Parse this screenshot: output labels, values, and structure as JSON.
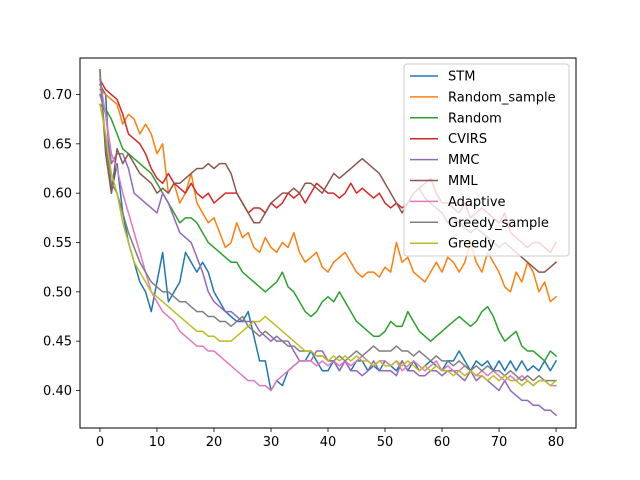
{
  "chart_data": {
    "type": "line",
    "title": "",
    "xlabel": "",
    "ylabel": "",
    "xlim": [
      -3.5,
      83.5
    ],
    "ylim": [
      0.362,
      0.737
    ],
    "x_ticks": [
      0,
      10,
      20,
      30,
      40,
      50,
      60,
      70,
      80
    ],
    "y_ticks": [
      0.4,
      0.45,
      0.5,
      0.55,
      0.6,
      0.65,
      0.7
    ],
    "y_tick_labels": [
      "0.40",
      "0.45",
      "0.50",
      "0.55",
      "0.60",
      "0.65",
      "0.70"
    ],
    "legend_position": "top-right",
    "grid": false,
    "x_start": 0,
    "x_step": 1,
    "series": [
      {
        "name": "STM",
        "color": "#1f77b4",
        "values": [
          0.71,
          0.7,
          0.6,
          0.63,
          0.58,
          0.55,
          0.53,
          0.51,
          0.5,
          0.48,
          0.51,
          0.54,
          0.49,
          0.5,
          0.51,
          0.54,
          0.53,
          0.52,
          0.53,
          0.52,
          0.5,
          0.49,
          0.48,
          0.475,
          0.47,
          0.47,
          0.48,
          0.455,
          0.43,
          0.43,
          0.4,
          0.41,
          0.405,
          0.42,
          0.425,
          0.43,
          0.43,
          0.44,
          0.43,
          0.42,
          0.42,
          0.43,
          0.42,
          0.43,
          0.42,
          0.43,
          0.43,
          0.42,
          0.425,
          0.42,
          0.43,
          0.425,
          0.42,
          0.43,
          0.42,
          0.43,
          0.42,
          0.425,
          0.43,
          0.425,
          0.42,
          0.43,
          0.43,
          0.44,
          0.43,
          0.42,
          0.43,
          0.425,
          0.43,
          0.42,
          0.43,
          0.42,
          0.43,
          0.42,
          0.43,
          0.42,
          0.425,
          0.42,
          0.43,
          0.42,
          0.43
        ]
      },
      {
        "name": "Random_sample",
        "color": "#ff7f0e",
        "values": [
          0.705,
          0.7,
          0.695,
          0.69,
          0.67,
          0.68,
          0.675,
          0.66,
          0.67,
          0.66,
          0.64,
          0.65,
          0.6,
          0.61,
          0.59,
          0.6,
          0.62,
          0.59,
          0.58,
          0.57,
          0.575,
          0.56,
          0.545,
          0.55,
          0.57,
          0.555,
          0.56,
          0.545,
          0.54,
          0.555,
          0.545,
          0.54,
          0.55,
          0.545,
          0.56,
          0.54,
          0.53,
          0.535,
          0.54,
          0.525,
          0.52,
          0.53,
          0.535,
          0.54,
          0.53,
          0.52,
          0.515,
          0.52,
          0.52,
          0.515,
          0.525,
          0.52,
          0.55,
          0.53,
          0.535,
          0.52,
          0.515,
          0.51,
          0.52,
          0.53,
          0.52,
          0.535,
          0.53,
          0.52,
          0.53,
          0.55,
          0.53,
          0.52,
          0.54,
          0.53,
          0.52,
          0.505,
          0.5,
          0.52,
          0.51,
          0.53,
          0.52,
          0.5,
          0.51,
          0.49,
          0.495
        ]
      },
      {
        "name": "Random",
        "color": "#2ca02c",
        "values": [
          0.69,
          0.685,
          0.675,
          0.66,
          0.645,
          0.64,
          0.635,
          0.63,
          0.625,
          0.62,
          0.61,
          0.6,
          0.59,
          0.58,
          0.57,
          0.575,
          0.575,
          0.57,
          0.56,
          0.55,
          0.545,
          0.54,
          0.535,
          0.53,
          0.53,
          0.52,
          0.515,
          0.51,
          0.505,
          0.5,
          0.505,
          0.51,
          0.52,
          0.505,
          0.5,
          0.49,
          0.48,
          0.475,
          0.48,
          0.49,
          0.495,
          0.49,
          0.5,
          0.49,
          0.48,
          0.47,
          0.465,
          0.46,
          0.455,
          0.455,
          0.46,
          0.47,
          0.465,
          0.465,
          0.48,
          0.47,
          0.46,
          0.455,
          0.45,
          0.455,
          0.46,
          0.465,
          0.47,
          0.475,
          0.47,
          0.465,
          0.47,
          0.48,
          0.485,
          0.475,
          0.46,
          0.45,
          0.455,
          0.46,
          0.445,
          0.44,
          0.44,
          0.435,
          0.43,
          0.44,
          0.435
        ]
      },
      {
        "name": "CVIRS",
        "color": "#d62728",
        "values": [
          0.715,
          0.705,
          0.7,
          0.695,
          0.68,
          0.66,
          0.655,
          0.65,
          0.64,
          0.625,
          0.615,
          0.61,
          0.62,
          0.61,
          0.605,
          0.6,
          0.61,
          0.6,
          0.595,
          0.6,
          0.59,
          0.595,
          0.6,
          0.6,
          0.6,
          0.59,
          0.58,
          0.585,
          0.585,
          0.58,
          0.59,
          0.585,
          0.59,
          0.6,
          0.595,
          0.6,
          0.59,
          0.6,
          0.61,
          0.605,
          0.6,
          0.6,
          0.595,
          0.6,
          0.61,
          0.6,
          0.605,
          0.6,
          0.595,
          0.6,
          0.59,
          0.585,
          0.59,
          0.585,
          0.59,
          0.6,
          0.605,
          0.61,
          0.615,
          0.6,
          0.59,
          0.59,
          0.585,
          0.58,
          0.59,
          0.575,
          0.58,
          0.585,
          0.58,
          0.575,
          0.57,
          0.58,
          0.56,
          0.555,
          0.55,
          0.545,
          0.55,
          0.55,
          0.545,
          0.54,
          0.55
        ]
      },
      {
        "name": "MMC",
        "color": "#9467bd",
        "values": [
          0.7,
          0.68,
          0.63,
          0.64,
          0.64,
          0.625,
          0.6,
          0.595,
          0.59,
          0.585,
          0.58,
          0.6,
          0.59,
          0.575,
          0.56,
          0.555,
          0.55,
          0.535,
          0.52,
          0.5,
          0.49,
          0.485,
          0.48,
          0.48,
          0.475,
          0.47,
          0.47,
          0.47,
          0.46,
          0.455,
          0.45,
          0.455,
          0.45,
          0.45,
          0.44,
          0.43,
          0.43,
          0.43,
          0.44,
          0.44,
          0.43,
          0.43,
          0.42,
          0.43,
          0.42,
          0.42,
          0.415,
          0.42,
          0.43,
          0.42,
          0.42,
          0.42,
          0.415,
          0.43,
          0.42,
          0.42,
          0.415,
          0.415,
          0.42,
          0.42,
          0.415,
          0.42,
          0.42,
          0.415,
          0.41,
          0.42,
          0.41,
          0.415,
          0.41,
          0.405,
          0.4,
          0.41,
          0.4,
          0.395,
          0.39,
          0.39,
          0.385,
          0.385,
          0.38,
          0.38,
          0.375
        ]
      },
      {
        "name": "MML",
        "color": "#8c564b",
        "values": [
          0.725,
          0.64,
          0.6,
          0.645,
          0.63,
          0.64,
          0.63,
          0.62,
          0.615,
          0.61,
          0.6,
          0.605,
          0.6,
          0.61,
          0.61,
          0.615,
          0.62,
          0.625,
          0.625,
          0.63,
          0.625,
          0.63,
          0.63,
          0.62,
          0.6,
          0.59,
          0.58,
          0.57,
          0.57,
          0.58,
          0.59,
          0.595,
          0.6,
          0.6,
          0.605,
          0.6,
          0.61,
          0.61,
          0.605,
          0.6,
          0.61,
          0.62,
          0.615,
          0.62,
          0.625,
          0.63,
          0.635,
          0.63,
          0.625,
          0.62,
          0.61,
          0.6,
          0.59,
          0.58,
          0.59,
          0.6,
          0.605,
          0.595,
          0.59,
          0.585,
          0.58,
          0.57,
          0.575,
          0.57,
          0.565,
          0.56,
          0.565,
          0.56,
          0.555,
          0.55,
          0.545,
          0.55,
          0.545,
          0.54,
          0.535,
          0.53,
          0.525,
          0.52,
          0.52,
          0.525,
          0.53
        ]
      },
      {
        "name": "Adaptive",
        "color": "#e377c2",
        "values": [
          0.715,
          0.68,
          0.64,
          0.625,
          0.6,
          0.58,
          0.56,
          0.54,
          0.52,
          0.5,
          0.49,
          0.48,
          0.475,
          0.47,
          0.46,
          0.455,
          0.45,
          0.445,
          0.445,
          0.44,
          0.44,
          0.435,
          0.43,
          0.425,
          0.42,
          0.415,
          0.41,
          0.41,
          0.405,
          0.405,
          0.4,
          0.41,
          0.415,
          0.42,
          0.425,
          0.43,
          0.43,
          0.43,
          0.425,
          0.43,
          0.425,
          0.43,
          0.425,
          0.43,
          0.425,
          0.43,
          0.435,
          0.43,
          0.425,
          0.43,
          0.43,
          0.425,
          0.43,
          0.42,
          0.425,
          0.43,
          0.425,
          0.42,
          0.425,
          0.43,
          0.42,
          0.425,
          0.42,
          0.42,
          0.425,
          0.42,
          0.415,
          0.42,
          0.415,
          0.42,
          0.415,
          0.41,
          0.415,
          0.41,
          0.415,
          0.41,
          0.405,
          0.41,
          0.41,
          0.405,
          0.405
        ]
      },
      {
        "name": "Greedy_sample",
        "color": "#7f7f7f",
        "values": [
          0.72,
          0.65,
          0.61,
          0.6,
          0.58,
          0.56,
          0.545,
          0.53,
          0.52,
          0.51,
          0.505,
          0.5,
          0.5,
          0.495,
          0.49,
          0.49,
          0.485,
          0.48,
          0.48,
          0.475,
          0.475,
          0.47,
          0.47,
          0.465,
          0.47,
          0.475,
          0.465,
          0.46,
          0.455,
          0.46,
          0.455,
          0.45,
          0.45,
          0.445,
          0.445,
          0.44,
          0.44,
          0.44,
          0.435,
          0.435,
          0.43,
          0.43,
          0.435,
          0.43,
          0.435,
          0.44,
          0.435,
          0.44,
          0.445,
          0.44,
          0.44,
          0.44,
          0.445,
          0.44,
          0.44,
          0.435,
          0.44,
          0.435,
          0.43,
          0.435,
          0.43,
          0.43,
          0.425,
          0.43,
          0.425,
          0.42,
          0.425,
          0.42,
          0.425,
          0.42,
          0.42,
          0.415,
          0.42,
          0.415,
          0.41,
          0.415,
          0.41,
          0.415,
          0.41,
          0.41,
          0.41
        ]
      },
      {
        "name": "Greedy",
        "color": "#bcbd22",
        "values": [
          0.69,
          0.66,
          0.62,
          0.6,
          0.57,
          0.55,
          0.53,
          0.52,
          0.51,
          0.5,
          0.495,
          0.49,
          0.485,
          0.48,
          0.475,
          0.47,
          0.465,
          0.46,
          0.46,
          0.455,
          0.455,
          0.45,
          0.45,
          0.45,
          0.455,
          0.46,
          0.465,
          0.47,
          0.47,
          0.475,
          0.47,
          0.465,
          0.46,
          0.455,
          0.45,
          0.445,
          0.44,
          0.44,
          0.435,
          0.435,
          0.43,
          0.435,
          0.43,
          0.435,
          0.43,
          0.435,
          0.43,
          0.43,
          0.425,
          0.43,
          0.425,
          0.425,
          0.43,
          0.425,
          0.43,
          0.425,
          0.42,
          0.425,
          0.42,
          0.425,
          0.42,
          0.42,
          0.415,
          0.42,
          0.415,
          0.42,
          0.415,
          0.415,
          0.41,
          0.415,
          0.41,
          0.415,
          0.41,
          0.41,
          0.405,
          0.41,
          0.405,
          0.41,
          0.41,
          0.405,
          0.41
        ]
      }
    ]
  }
}
